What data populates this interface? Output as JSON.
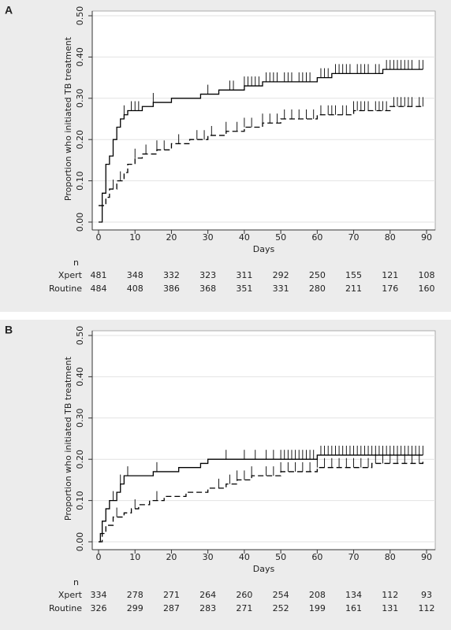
{
  "chart_data": [
    {
      "type": "line",
      "label": "A",
      "step": true,
      "ylabel": "Proportion who initiated TB treatment",
      "xlabel": "Days",
      "xlim": [
        0,
        90
      ],
      "xticks": [
        0,
        10,
        20,
        30,
        40,
        50,
        60,
        70,
        80,
        90
      ],
      "ylim": [
        0,
        0.5
      ],
      "yticks": [
        {
          "value": 0,
          "label": "0.00"
        },
        {
          "value": 0.1,
          "label": "0.10"
        },
        {
          "value": 0.2,
          "label": "0.20"
        },
        {
          "value": 0.3,
          "label": "0.30"
        },
        {
          "value": 0.4,
          "label": "0.40"
        },
        {
          "value": 0.5,
          "label": "0.50"
        }
      ],
      "grid": true,
      "series": [
        {
          "name": "Xpert",
          "color": "#000000",
          "dash": false,
          "x": [
            0,
            1,
            2,
            3,
            4,
            5,
            6,
            7,
            8,
            12,
            15,
            20,
            28,
            33,
            40,
            45,
            60,
            64,
            78,
            89
          ],
          "values": [
            0,
            0.07,
            0.14,
            0.16,
            0.2,
            0.23,
            0.25,
            0.26,
            0.27,
            0.28,
            0.29,
            0.3,
            0.31,
            0.32,
            0.33,
            0.34,
            0.35,
            0.36,
            0.37,
            0.37
          ],
          "censored": [
            7,
            9,
            10,
            11,
            15,
            30,
            36,
            37,
            40,
            41,
            42,
            43,
            44,
            46,
            47,
            48,
            49,
            51,
            52,
            53,
            55,
            56,
            57,
            58,
            61,
            62,
            63,
            65,
            66,
            67,
            68,
            69,
            71,
            72,
            73,
            74,
            76,
            77,
            79,
            80,
            81,
            82,
            83,
            84,
            85,
            86,
            88,
            89
          ]
        },
        {
          "name": "Routine",
          "color": "#000000",
          "dash": true,
          "x": [
            0,
            2,
            3,
            5,
            7,
            8,
            10,
            12,
            16,
            20,
            25,
            30,
            35,
            40,
            45,
            50,
            60,
            70,
            80,
            89
          ],
          "values": [
            0.04,
            0.06,
            0.08,
            0.1,
            0.12,
            0.14,
            0.155,
            0.165,
            0.175,
            0.19,
            0.2,
            0.21,
            0.22,
            0.23,
            0.24,
            0.25,
            0.26,
            0.27,
            0.28,
            0.28
          ],
          "censored": [
            4,
            6,
            10,
            13,
            16,
            18,
            22,
            27,
            29,
            31,
            35,
            38,
            40,
            42,
            45,
            47,
            49,
            51,
            53,
            55,
            57,
            59,
            61,
            63,
            64,
            65,
            67,
            68,
            70,
            71,
            72,
            73,
            74,
            76,
            77,
            78,
            79,
            81,
            82,
            83,
            84,
            85,
            86,
            88,
            89
          ]
        }
      ],
      "risk_table": {
        "header": "n",
        "rows": [
          {
            "name": "Xpert",
            "values": [
              481,
              348,
              332,
              323,
              311,
              292,
              250,
              155,
              121,
              108
            ]
          },
          {
            "name": "Routine",
            "values": [
              484,
              408,
              386,
              368,
              351,
              331,
              280,
              211,
              176,
              160
            ]
          }
        ]
      }
    },
    {
      "type": "line",
      "label": "B",
      "step": true,
      "ylabel": "Proportion who initiated TB treatment",
      "xlabel": "Days",
      "xlim": [
        0,
        90
      ],
      "xticks": [
        0,
        10,
        20,
        30,
        40,
        50,
        60,
        70,
        80,
        90
      ],
      "ylim": [
        0,
        0.5
      ],
      "yticks": [
        {
          "value": 0,
          "label": "0.00"
        },
        {
          "value": 0.1,
          "label": "0.10"
        },
        {
          "value": 0.2,
          "label": "0.20"
        },
        {
          "value": 0.3,
          "label": "0.30"
        },
        {
          "value": 0.4,
          "label": "0.40"
        },
        {
          "value": 0.5,
          "label": "0.50"
        }
      ],
      "grid": true,
      "series": [
        {
          "name": "Xpert",
          "color": "#000000",
          "dash": false,
          "x": [
            0,
            0.5,
            1,
            2,
            3,
            5,
            6,
            7,
            15,
            22,
            28,
            30,
            60,
            89
          ],
          "values": [
            0,
            0.02,
            0.05,
            0.08,
            0.1,
            0.12,
            0.14,
            0.16,
            0.17,
            0.18,
            0.19,
            0.2,
            0.21,
            0.21
          ],
          "censored": [
            4,
            6,
            8,
            16,
            35,
            40,
            43,
            46,
            48,
            50,
            51,
            52,
            53,
            54,
            55,
            56,
            57,
            58,
            59,
            61,
            62,
            63,
            64,
            65,
            66,
            67,
            68,
            69,
            70,
            71,
            72,
            73,
            74,
            75,
            76,
            77,
            78,
            79,
            80,
            81,
            82,
            83,
            84,
            85,
            86,
            87,
            88,
            89
          ]
        },
        {
          "name": "Routine",
          "color": "#000000",
          "dash": true,
          "x": [
            0,
            1,
            2,
            4,
            7,
            9,
            11,
            14,
            18,
            24,
            30,
            35,
            38,
            42,
            50,
            60,
            75,
            89
          ],
          "values": [
            0,
            0.02,
            0.04,
            0.06,
            0.07,
            0.08,
            0.09,
            0.1,
            0.11,
            0.12,
            0.13,
            0.14,
            0.15,
            0.16,
            0.17,
            0.18,
            0.19,
            0.2
          ],
          "censored": [
            5,
            10,
            16,
            33,
            36,
            38,
            40,
            42,
            46,
            48,
            50,
            52,
            54,
            56,
            58,
            60,
            62,
            64,
            66,
            68,
            70,
            72,
            74,
            76,
            78,
            80,
            82,
            84,
            86,
            88
          ]
        }
      ],
      "risk_table": {
        "header": "n",
        "rows": [
          {
            "name": "Xpert",
            "values": [
              334,
              278,
              271,
              264,
              260,
              254,
              208,
              134,
              112,
              93
            ]
          },
          {
            "name": "Routine",
            "values": [
              326,
              299,
              287,
              283,
              271,
              252,
              199,
              161,
              131,
              112
            ]
          }
        ]
      }
    }
  ]
}
